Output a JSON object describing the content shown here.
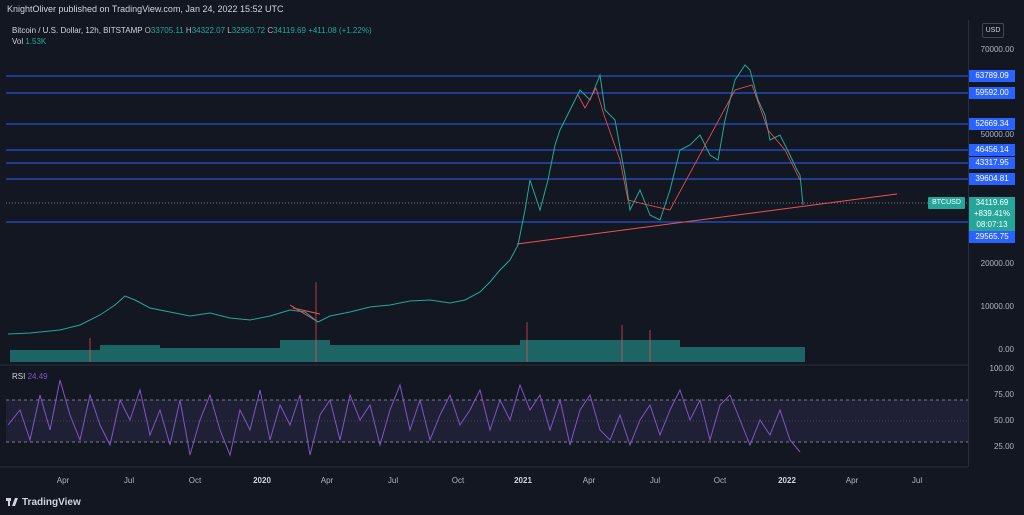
{
  "header": {
    "publisher": "KnightOliver published on TradingView.com, Jan 24, 2022 15:52 UTC"
  },
  "legend": {
    "symbol": "Bitcoin / U.S. Dollar, 12h, BITSTAMP",
    "o_label": "O",
    "o_value": "33705.11",
    "h_label": "H",
    "h_value": "34322.07",
    "l_label": "L",
    "l_value": "32950.72",
    "c_label": "C",
    "c_value": "34119.69",
    "change": "+411.08 (+1.22%)",
    "vol_label": "Vol",
    "vol_value": "1.53K"
  },
  "currency_button": "USD",
  "price_axis": [
    "70000.00",
    "50000.00",
    "20000.00",
    "10000.00",
    "0.00"
  ],
  "levels": [
    "63789.09",
    "59592.00",
    "52669.34",
    "46456.14",
    "43317.95",
    "39604.81",
    "29565.75"
  ],
  "current": {
    "ticker": "BTCUSD",
    "price": "34119.69",
    "change": "+839.41%",
    "countdown": "08:07:13"
  },
  "rsi": {
    "label": "RSI",
    "value": "24.49",
    "ticks": [
      "100.00",
      "75.00",
      "50.00",
      "25.00"
    ]
  },
  "time_axis": [
    "Apr",
    "Jul",
    "Oct",
    "2020",
    "Apr",
    "Jul",
    "Oct",
    "2021",
    "Apr",
    "Jul",
    "Oct",
    "2022",
    "Apr",
    "Jul"
  ],
  "footer": {
    "brand": "TradingView"
  },
  "colors": {
    "bg": "#131722",
    "up": "#26a69a",
    "down": "#ef5350",
    "level": "#2962ff",
    "rsi": "#7e57c2",
    "trend": "#ef5350"
  }
}
